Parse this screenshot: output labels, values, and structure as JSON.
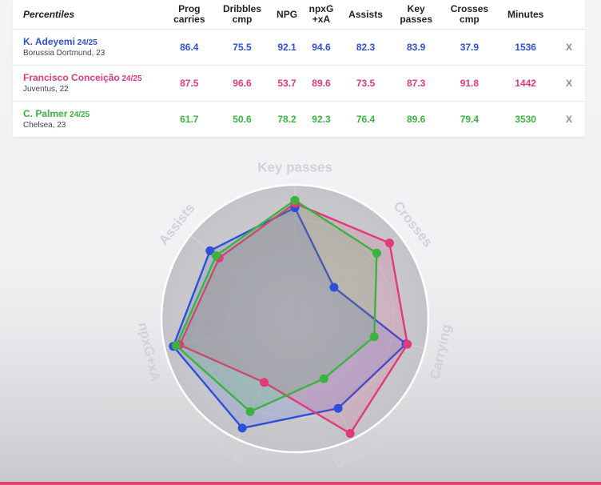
{
  "table": {
    "headers": [
      "Percentiles",
      "Prog carries",
      "Dribbles cmp",
      "NPG",
      "npxG +xA",
      "Assists",
      "Key passes",
      "Crosses cmp",
      "Minutes"
    ],
    "header_lines": [
      [
        "Percentiles"
      ],
      [
        "Prog",
        "carries"
      ],
      [
        "Dribbles",
        "cmp"
      ],
      [
        "NPG"
      ],
      [
        "npxG",
        "+xA"
      ],
      [
        "Assists"
      ],
      [
        "Key",
        "passes"
      ],
      [
        "Crosses",
        "cmp"
      ],
      [
        "Minutes"
      ]
    ],
    "remove_label": "X",
    "rows": [
      {
        "name": "K. Adeyemi",
        "season": "24/25",
        "meta": "Borussia Dortmund, 23",
        "color": "#2f4fd8",
        "values": [
          "86.4",
          "75.5",
          "92.1",
          "94.6",
          "82.3",
          "83.9",
          "37.9",
          "1536"
        ]
      },
      {
        "name": "Francisco Conceição",
        "season": "24/25",
        "meta": "Juventus, 22",
        "color": "#e03a78",
        "values": [
          "87.5",
          "96.6",
          "53.7",
          "89.6",
          "73.5",
          "87.3",
          "91.8",
          "1442"
        ]
      },
      {
        "name": "C. Palmer",
        "season": "24/25",
        "meta": "Chelsea, 23",
        "color": "#3bb33f",
        "values": [
          "61.7",
          "50.6",
          "78.2",
          "92.3",
          "76.4",
          "89.6",
          "79.4",
          "3530"
        ]
      }
    ]
  },
  "chart_data": {
    "type": "radar",
    "axes": [
      "Key passes",
      "Crosses",
      "Carrying",
      "Dribbles",
      "NPG",
      "npxG+xA",
      "Assists"
    ],
    "range": [
      0,
      100
    ],
    "grid": true,
    "series": [
      {
        "name": "K. Adeyemi",
        "color": "#2f4fd8",
        "values": [
          83.9,
          37.9,
          86.4,
          75.5,
          92.1,
          94.6,
          82.3
        ]
      },
      {
        "name": "Francisco Conceição",
        "color": "#e03a78",
        "values": [
          87.3,
          91.8,
          87.5,
          96.6,
          53.7,
          89.6,
          73.5
        ]
      },
      {
        "name": "C. Palmer",
        "color": "#3bb33f",
        "values": [
          89.6,
          79.4,
          61.7,
          50.6,
          78.2,
          92.3,
          76.4
        ]
      }
    ]
  }
}
